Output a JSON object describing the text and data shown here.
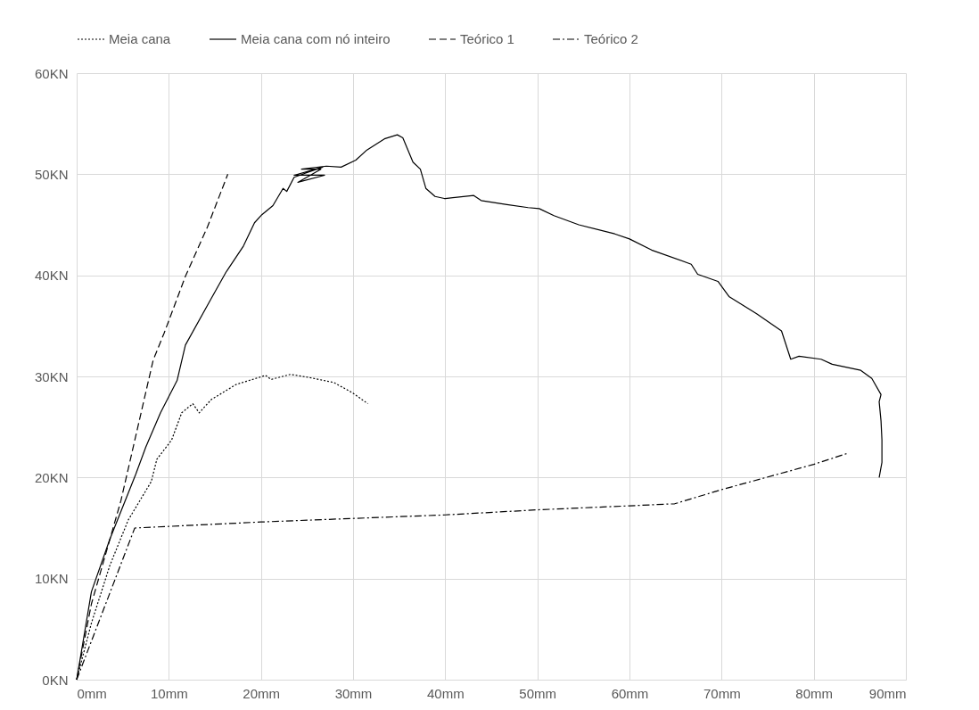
{
  "chart_data": {
    "type": "line",
    "grid": true,
    "legend": "top",
    "marker": "none",
    "xlim": [
      0,
      90
    ],
    "ylim": [
      0,
      60
    ],
    "xticks": [
      {
        "value": 0,
        "label": "0mm"
      },
      {
        "value": 10,
        "label": "10mm"
      },
      {
        "value": 20,
        "label": "20mm"
      },
      {
        "value": 30,
        "label": "30mm"
      },
      {
        "value": 40,
        "label": "40mm"
      },
      {
        "value": 50,
        "label": "50mm"
      },
      {
        "value": 60,
        "label": "60mm"
      },
      {
        "value": 70,
        "label": "70mm"
      },
      {
        "value": 80,
        "label": "80mm"
      },
      {
        "value": 90,
        "label": "90mm"
      }
    ],
    "yticks": [
      {
        "value": 0,
        "label": "0KN"
      },
      {
        "value": 10,
        "label": "10KN"
      },
      {
        "value": 20,
        "label": "20KN"
      },
      {
        "value": 30,
        "label": "30KN"
      },
      {
        "value": 40,
        "label": "40KN"
      },
      {
        "value": 50,
        "label": "50KN"
      },
      {
        "value": 60,
        "label": "60KN"
      }
    ],
    "series": [
      {
        "name": "Meia cana",
        "color": "#000000",
        "line_style": "dotted",
        "x": [
          0,
          1.6,
          3.6,
          5.6,
          8.1,
          8.7,
          10.3,
          11.4,
          12.6,
          13.3,
          14.6,
          17.3,
          20.5,
          21.1,
          23.2,
          25.2,
          27.9,
          29.9,
          31.6
        ],
        "values": [
          0,
          5.6,
          11.3,
          15.8,
          19.6,
          21.8,
          23.7,
          26.4,
          27.3,
          26.4,
          27.7,
          29.2,
          30.1,
          29.7,
          30.2,
          29.9,
          29.4,
          28.4,
          27.3
        ]
      },
      {
        "name": "Meia cana com nó inteiro",
        "color": "#000000",
        "line_style": "solid",
        "x": [
          0,
          1.6,
          3.6,
          6.4,
          7.5,
          9.1,
          10.9,
          11.8,
          14.6,
          16.2,
          18.1,
          19.3,
          20.1,
          21.3,
          22.4,
          22.8,
          23.6,
          24.8,
          26.7,
          23.6,
          26.9,
          24,
          26.5,
          24.4,
          27.1,
          28.7,
          30.3,
          31.5,
          33.4,
          34.8,
          35.4,
          36.5,
          37.3,
          37.9,
          38.9,
          39.9,
          40,
          43.1,
          43.9,
          46.7,
          49,
          50.2,
          51.8,
          54.5,
          58.4,
          60,
          62.4,
          66.7,
          67.4,
          69.6,
          70.8,
          73.8,
          76.5,
          77.5,
          78.4,
          80.8,
          82,
          85.1,
          86.3,
          87.3,
          87.1,
          87.3,
          87.4,
          87.4,
          87.1
        ],
        "values": [
          0,
          8.7,
          13.9,
          20.3,
          23,
          26.4,
          29.6,
          33.1,
          37.7,
          40.3,
          42.9,
          45.2,
          46,
          46.9,
          48.6,
          48.3,
          49.7,
          50.1,
          50.7,
          49.9,
          49.9,
          49.2,
          50.5,
          50.5,
          50.8,
          50.7,
          51.4,
          52.4,
          53.5,
          53.9,
          53.6,
          51.2,
          50.5,
          48.6,
          47.8,
          47.6,
          47.6,
          47.9,
          47.4,
          47,
          46.7,
          46.6,
          45.9,
          45,
          44.1,
          43.6,
          42.5,
          41.1,
          40.1,
          39.4,
          37.9,
          36.2,
          34.5,
          31.7,
          32,
          31.7,
          31.2,
          30.6,
          29.8,
          28.2,
          27.5,
          25.6,
          23.7,
          21.5,
          20
        ]
      },
      {
        "name": "Teórico 1",
        "color": "#000000",
        "line_style": "dashed",
        "x": [
          0,
          1.6,
          4.8,
          8.3,
          9.5,
          11.8,
          14.2,
          16.4
        ],
        "values": [
          0,
          7.5,
          17.7,
          31.6,
          34.3,
          39.9,
          44.8,
          50
        ]
      },
      {
        "name": "Teórico 2",
        "color": "#000000",
        "line_style": "dashdot",
        "x": [
          0,
          6.3,
          20,
          40,
          50,
          60,
          64.9,
          70,
          80,
          83.7
        ],
        "values": [
          0,
          15,
          15.6,
          16.3,
          16.8,
          17.2,
          17.4,
          18.8,
          21.3,
          22.4
        ]
      }
    ]
  }
}
